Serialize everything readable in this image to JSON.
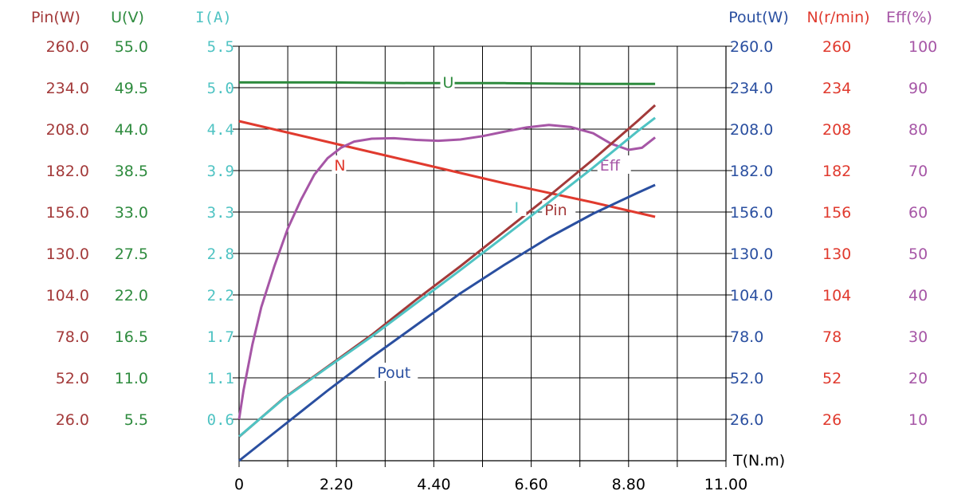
{
  "chart_data": {
    "type": "line",
    "x_axis": {
      "label": "T(N.m)",
      "range": [
        0,
        11.0
      ],
      "ticks": [
        "0",
        "2.20",
        "4.40",
        "6.60",
        "8.80",
        "11.00"
      ],
      "tick_values": [
        0,
        2.2,
        4.4,
        6.6,
        8.8,
        11.0
      ],
      "minor_grid_step": 1.1
    },
    "left_axes": [
      {
        "id": "pin",
        "label": "Pin(W)",
        "color": "#a33a3a",
        "range": [
          0,
          260.0
        ],
        "ticks": [
          "260.0",
          "234.0",
          "208.0",
          "182.0",
          "156.0",
          "130.0",
          "104.0",
          "78.0",
          "52.0",
          "26.0"
        ]
      },
      {
        "id": "u",
        "label": "U(V)",
        "color": "#2e8b3e",
        "range": [
          0,
          55.0
        ],
        "ticks": [
          "55.0",
          "49.5",
          "44.0",
          "38.5",
          "33.0",
          "27.5",
          "22.0",
          "16.5",
          "11.0",
          "5.5"
        ]
      },
      {
        "id": "i",
        "label": "I(A)",
        "color": "#4fc3c3",
        "range": [
          0,
          5.5
        ],
        "ticks": [
          "5.5",
          "5.0",
          "4.4",
          "3.9",
          "3.3",
          "2.8",
          "2.2",
          "1.7",
          "1.1",
          "0.6"
        ]
      }
    ],
    "right_axes": [
      {
        "id": "pout",
        "label": "Pout(W)",
        "color": "#2a4fa0",
        "range": [
          0,
          260.0
        ],
        "ticks": [
          "260.0",
          "234.0",
          "208.0",
          "182.0",
          "156.0",
          "130.0",
          "104.0",
          "78.0",
          "52.0",
          "26.0"
        ]
      },
      {
        "id": "n",
        "label": "N(r/min)",
        "color": "#e03a2e",
        "range": [
          0,
          260
        ],
        "ticks": [
          "260",
          "234",
          "208",
          "182",
          "156",
          "130",
          "104",
          "78",
          "52",
          "26"
        ]
      },
      {
        "id": "eff",
        "label": "Eff(%)",
        "color": "#a656a6",
        "range": [
          0,
          100
        ],
        "ticks": [
          "100",
          "90",
          "80",
          "70",
          "60",
          "50",
          "40",
          "30",
          "20",
          "10"
        ]
      }
    ],
    "series": [
      {
        "name": "U",
        "axis": "u",
        "color": "#2e8b3e",
        "x": [
          0,
          2,
          4,
          6,
          8,
          9.4
        ],
        "y": [
          50.2,
          50.2,
          50.1,
          50.1,
          50.0,
          50.0
        ],
        "label_at": [
          4.6,
          49.5
        ]
      },
      {
        "name": "N",
        "axis": "n",
        "color": "#e03a2e",
        "x": [
          0,
          2,
          4,
          6,
          8,
          9.4
        ],
        "y": [
          213,
          200,
          187,
          174,
          162,
          153
        ],
        "label_at": [
          2.15,
          182
        ]
      },
      {
        "name": "Eff",
        "axis": "eff",
        "color": "#a656a6",
        "x": [
          0,
          0.1,
          0.3,
          0.5,
          0.8,
          1.1,
          1.4,
          1.7,
          2.0,
          2.3,
          2.6,
          3.0,
          3.5,
          4.0,
          4.5,
          5.0,
          5.5,
          6.0,
          6.5,
          7.0,
          7.5,
          8.0,
          8.4,
          8.8,
          9.1,
          9.4
        ],
        "y": [
          10,
          17,
          28,
          37,
          47,
          56,
          63,
          69,
          73,
          75.5,
          77,
          77.7,
          77.8,
          77.4,
          77.2,
          77.5,
          78.3,
          79.4,
          80.4,
          81,
          80.5,
          79,
          76.5,
          75,
          75.5,
          78
        ],
        "label_at": [
          8.15,
          70
        ]
      },
      {
        "name": "Pin",
        "axis": "pin",
        "color": "#a33a3a",
        "x": [
          0,
          1,
          2,
          3,
          4,
          5,
          6,
          7,
          8,
          9,
          9.4
        ],
        "y": [
          15,
          39,
          59,
          79,
          101,
          122,
          144,
          166,
          189,
          213,
          223
        ],
        "label_at": [
          6.9,
          154
        ]
      },
      {
        "name": "I",
        "axis": "i",
        "color": "#4fc3c3",
        "x": [
          0,
          1,
          2,
          3,
          4,
          5,
          6,
          7,
          8,
          9,
          9.4
        ],
        "y": [
          0.32,
          0.82,
          1.24,
          1.65,
          2.09,
          2.53,
          2.98,
          3.43,
          3.89,
          4.37,
          4.55
        ],
        "label_at": [
          6.22,
          3.29
        ]
      },
      {
        "name": "Pout",
        "axis": "pout",
        "color": "#2a4fa0",
        "x": [
          0,
          1,
          2,
          3,
          4,
          5,
          6,
          7,
          8,
          9,
          9.4
        ],
        "y": [
          0,
          22,
          44,
          65,
          85,
          105,
          123,
          140,
          155,
          168,
          173
        ],
        "label_at": [
          3.12,
          52
        ]
      }
    ]
  }
}
